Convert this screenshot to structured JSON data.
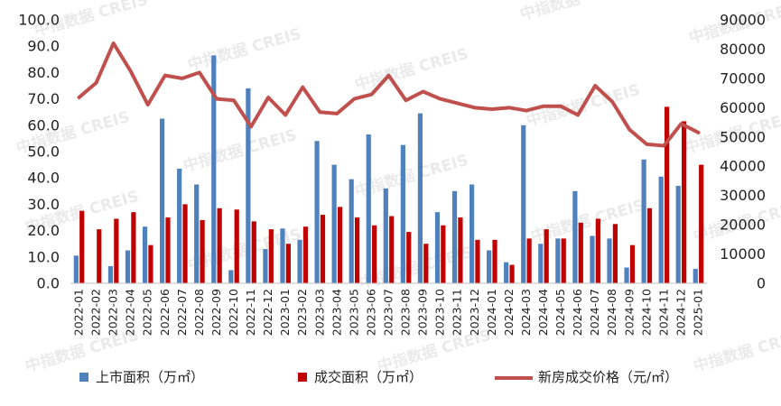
{
  "watermark": "中指数据 CREIS",
  "chart_data": {
    "type": "bar",
    "categories": [
      "2022-01",
      "2022-02",
      "2022-03",
      "2022-04",
      "2022-05",
      "2022-06",
      "2022-07",
      "2022-08",
      "2022-09",
      "2022-10",
      "2022-11",
      "2022-12",
      "2023-01",
      "2023-02",
      "2023-03",
      "2023-04",
      "2023-05",
      "2023-06",
      "2023-07",
      "2023-08",
      "2023-09",
      "2023-10",
      "2023-11",
      "2023-12",
      "2024-01",
      "2024-02",
      "2024-03",
      "2024-04",
      "2024-05",
      "2024-06",
      "2024-07",
      "2024-08",
      "2024-09",
      "2024-10",
      "2024-11",
      "2024-12",
      "2025-01"
    ],
    "series": [
      {
        "name": "上市面积（万㎡）",
        "type": "bar",
        "axis": "left",
        "color": "#4f81bd",
        "values": [
          10.5,
          0,
          6.5,
          12.5,
          21.5,
          62.5,
          43.5,
          37.5,
          86.5,
          5,
          74,
          13,
          20.8,
          16.5,
          54,
          45,
          39.5,
          56.5,
          36,
          52.5,
          64.5,
          27,
          35,
          37.5,
          12.5,
          8,
          60,
          15,
          17,
          35,
          18,
          17,
          6,
          47,
          40.5,
          37,
          5.5
        ]
      },
      {
        "name": "成交面积（万㎡）",
        "type": "bar",
        "axis": "left",
        "color": "#c00000",
        "values": [
          27.5,
          20.5,
          24.5,
          27,
          14.5,
          25,
          30,
          24,
          28.5,
          28,
          23.5,
          20.5,
          15,
          21.5,
          26,
          29,
          25,
          22,
          25.5,
          19.5,
          15,
          22,
          25,
          16.5,
          16.5,
          7,
          17,
          20.5,
          17,
          23,
          24.5,
          22.5,
          14.5,
          28.5,
          67,
          61.5,
          45
        ]
      },
      {
        "name": "新房成交价格（元/㎡）",
        "type": "line",
        "axis": "right",
        "color": "#c0504d",
        "values": [
          63500,
          68500,
          82000,
          72500,
          61000,
          71000,
          70000,
          72000,
          63000,
          62500,
          53500,
          63500,
          57500,
          67000,
          58500,
          58000,
          63000,
          64500,
          71000,
          62500,
          65500,
          63000,
          61500,
          60000,
          59500,
          60000,
          59000,
          60500,
          60500,
          57500,
          67500,
          62000,
          52500,
          47500,
          47000,
          54500,
          51500
        ]
      }
    ],
    "y_left": {
      "min": 0,
      "max": 100,
      "step": 10,
      "ticks": [
        "0.0",
        "10.0",
        "20.0",
        "30.0",
        "40.0",
        "50.0",
        "60.0",
        "70.0",
        "80.0",
        "90.0",
        "100.0"
      ]
    },
    "y_right": {
      "min": 0,
      "max": 90000,
      "step": 10000,
      "ticks": [
        "0",
        "10000",
        "20000",
        "30000",
        "40000",
        "50000",
        "60000",
        "70000",
        "80000",
        "90000"
      ]
    },
    "legend_position": "bottom",
    "grid": false
  }
}
